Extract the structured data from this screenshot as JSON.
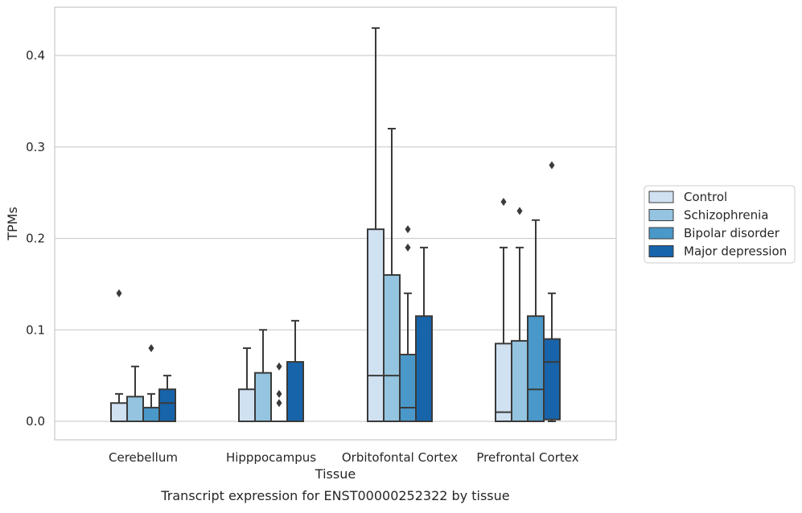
{
  "chart_data": {
    "type": "boxplot",
    "caption": "Transcript expression for ENST00000252322 by tissue",
    "xlabel": "Tissue",
    "ylabel": "TPMs",
    "ylim": [
      -0.02,
      0.455
    ],
    "yticks": [
      0.0,
      0.1,
      0.2,
      0.3,
      0.4
    ],
    "ytick_labels": [
      "0.0",
      "0.1",
      "0.2",
      "0.3",
      "0.4"
    ],
    "grid": "horizontal",
    "legend_position": "right",
    "categories": [
      "Cerebellum",
      "Hipppocampus",
      "Orbitofontal Cortex",
      "Prefrontal Cortex"
    ],
    "series": [
      {
        "name": "Control",
        "color": "#d0e1f2",
        "boxes": [
          {
            "whisker_low": 0.0,
            "q1": 0.0,
            "median": 0.0,
            "q3": 0.02,
            "whisker_high": 0.03,
            "outliers": [
              0.14
            ]
          },
          {
            "whisker_low": 0.0,
            "q1": 0.0,
            "median": 0.0,
            "q3": 0.035,
            "whisker_high": 0.08,
            "outliers": []
          },
          {
            "whisker_low": 0.0,
            "q1": 0.0,
            "median": 0.05,
            "q3": 0.21,
            "whisker_high": 0.43,
            "outliers": []
          },
          {
            "whisker_low": 0.0,
            "q1": 0.0,
            "median": 0.01,
            "q3": 0.085,
            "whisker_high": 0.19,
            "outliers": [
              0.24
            ]
          }
        ]
      },
      {
        "name": "Schizophrenia",
        "color": "#94c4df",
        "boxes": [
          {
            "whisker_low": 0.0,
            "q1": 0.0,
            "median": 0.0,
            "q3": 0.027,
            "whisker_high": 0.06,
            "outliers": []
          },
          {
            "whisker_low": 0.0,
            "q1": 0.0,
            "median": 0.0,
            "q3": 0.053,
            "whisker_high": 0.1,
            "outliers": []
          },
          {
            "whisker_low": 0.0,
            "q1": 0.0,
            "median": 0.05,
            "q3": 0.16,
            "whisker_high": 0.32,
            "outliers": []
          },
          {
            "whisker_low": 0.0,
            "q1": 0.0,
            "median": 0.0,
            "q3": 0.088,
            "whisker_high": 0.19,
            "outliers": [
              0.23
            ]
          }
        ]
      },
      {
        "name": "Bipolar disorder",
        "color": "#4a98c9",
        "boxes": [
          {
            "whisker_low": 0.0,
            "q1": 0.0,
            "median": 0.0,
            "q3": 0.015,
            "whisker_high": 0.03,
            "outliers": [
              0.08
            ]
          },
          {
            "whisker_low": 0.0,
            "q1": 0.0,
            "median": 0.0,
            "q3": 0.0,
            "whisker_high": 0.0,
            "outliers": [
              0.02,
              0.03,
              0.06
            ]
          },
          {
            "whisker_low": 0.0,
            "q1": 0.0,
            "median": 0.015,
            "q3": 0.073,
            "whisker_high": 0.14,
            "outliers": [
              0.19,
              0.21
            ]
          },
          {
            "whisker_low": 0.0,
            "q1": 0.0,
            "median": 0.035,
            "q3": 0.115,
            "whisker_high": 0.22,
            "outliers": []
          }
        ]
      },
      {
        "name": "Major depression",
        "color": "#1764ab",
        "boxes": [
          {
            "whisker_low": 0.0,
            "q1": 0.0,
            "median": 0.02,
            "q3": 0.035,
            "whisker_high": 0.05,
            "outliers": []
          },
          {
            "whisker_low": 0.0,
            "q1": 0.0,
            "median": 0.0,
            "q3": 0.065,
            "whisker_high": 0.11,
            "outliers": []
          },
          {
            "whisker_low": 0.0,
            "q1": 0.0,
            "median": 0.0,
            "q3": 0.115,
            "whisker_high": 0.19,
            "outliers": []
          },
          {
            "whisker_low": 0.0,
            "q1": 0.002,
            "median": 0.065,
            "q3": 0.09,
            "whisker_high": 0.14,
            "outliers": [
              0.28
            ]
          }
        ]
      }
    ]
  }
}
